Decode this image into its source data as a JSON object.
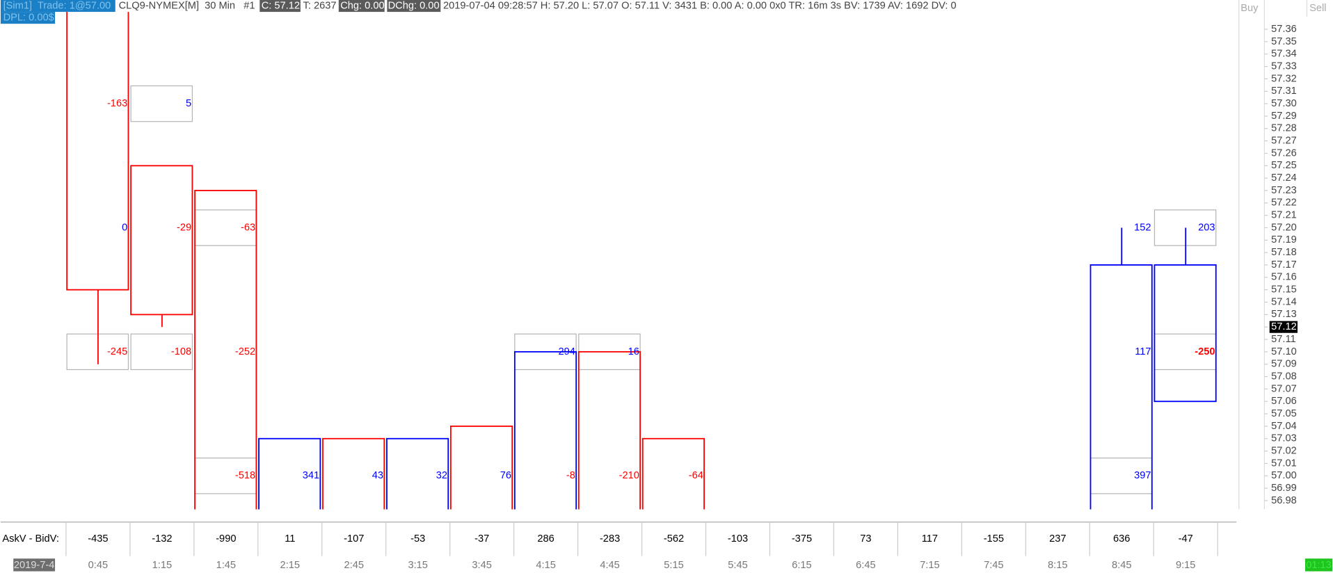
{
  "header": {
    "account": "[Sim1]  Trade: 1@57.00",
    "symbol": "CLQ9-NYMEX[M]  30 Min   #1",
    "close": "C: 57.12",
    "ticks": "T: 2637",
    "chg": "Chg: 0.00",
    "dchg": "DChg: 0.00",
    "info": "2019-07-04 09:28:57 H: 57.20 L: 57.07 O: 57.11 V: 3431 B: 0.00 A: 0.00 0x0 TR: 16m 3s BV: 1739 AV: 1692 DV: 0",
    "dpl": "DPL: 0.00$"
  },
  "buttons": {
    "buy": "Buy",
    "sell": "Sell"
  },
  "price_axis": {
    "ylim": [
      56.973,
      57.374
    ],
    "yticks": [
      56.98,
      56.99,
      {
        "value": 57,
        "label": "57.00"
      },
      57.01,
      57.02,
      57.03,
      57.04,
      57.05,
      57.06,
      57.07,
      57.08,
      57.09,
      {
        "value": 57.1,
        "label": "57.10"
      },
      57.11,
      57.12,
      57.13,
      57.14,
      57.15,
      57.16,
      57.17,
      57.18,
      57.19,
      {
        "value": 57.2,
        "label": "57.20"
      },
      57.21,
      57.22,
      57.23,
      57.24,
      57.25,
      57.26,
      57.27,
      57.28,
      57.29,
      {
        "value": 57.3,
        "label": "57.30"
      },
      57.31,
      57.32,
      57.33,
      57.34,
      57.35,
      57.36
    ],
    "last": {
      "value": 57.12,
      "label": "57.12"
    }
  },
  "colors": {
    "up": "#0000ff",
    "down": "#ff0000",
    "box": "#b4b4b4"
  },
  "row_label": "AskV - BidV:",
  "date": "2019-7-4",
  "timer": "01:13",
  "columns": [
    {
      "time": "0:45",
      "delta": -435,
      "candle": {
        "open": 57.4,
        "high": 57.4,
        "low": 57.09,
        "close": 57.15
      },
      "cells": [
        {
          "price": 57.3,
          "value": -163
        },
        {
          "price": 57.2,
          "value": 0
        },
        {
          "price": 57.1,
          "value": -245,
          "boxed": true
        }
      ]
    },
    {
      "time": "1:15",
      "delta": -132,
      "candle": {
        "open": 57.25,
        "high": 57.25,
        "low": 57.12,
        "close": 57.13
      },
      "cells": [
        {
          "price": 57.3,
          "value": 5,
          "boxed": true
        },
        {
          "price": 57.2,
          "value": -29
        },
        {
          "price": 57.1,
          "value": -108,
          "boxed": true
        }
      ]
    },
    {
      "time": "1:45",
      "delta": -990,
      "candle": {
        "open": 57.23,
        "high": 57.23,
        "low": 56.96,
        "close": 56.96
      },
      "cells": [
        {
          "price": 57.2,
          "value": -63,
          "boxed": true
        },
        {
          "price": 57.1,
          "value": -252
        },
        {
          "price": 57,
          "value": -518,
          "boxed": true
        }
      ]
    },
    {
      "time": "2:15",
      "delta": 11,
      "candle": {
        "open": 56.96,
        "high": 57.03,
        "low": 56.96,
        "close": 57.03
      },
      "cells": [
        {
          "price": 57,
          "value": 341
        }
      ]
    },
    {
      "time": "2:45",
      "delta": -107,
      "candle": {
        "open": 57.03,
        "high": 57.03,
        "low": 56.96,
        "close": 56.96
      },
      "cells": [
        {
          "price": 57,
          "value": 43
        }
      ]
    },
    {
      "time": "3:15",
      "delta": -53,
      "candle": {
        "open": 56.96,
        "high": 57.03,
        "low": 56.96,
        "close": 57.03
      },
      "cells": [
        {
          "price": 57,
          "value": 32
        }
      ]
    },
    {
      "time": "3:45",
      "delta": -37,
      "candle": {
        "open": 57.04,
        "high": 57.04,
        "low": 56.96,
        "close": 56.96
      },
      "cells": [
        {
          "price": 57,
          "value": 76
        }
      ]
    },
    {
      "time": "4:15",
      "delta": 286,
      "candle": {
        "open": 56.96,
        "high": 57.1,
        "low": 56.96,
        "close": 57.1
      },
      "cells": [
        {
          "price": 57.1,
          "value": 294,
          "boxed": true
        },
        {
          "price": 57,
          "value": -8
        }
      ]
    },
    {
      "time": "4:45",
      "delta": -283,
      "candle": {
        "open": 57.1,
        "high": 57.1,
        "low": 56.96,
        "close": 56.96
      },
      "cells": [
        {
          "price": 57.1,
          "value": 16,
          "boxed": true
        },
        {
          "price": 57,
          "value": -210
        }
      ]
    },
    {
      "time": "5:15",
      "delta": -562,
      "candle": {
        "open": 57.03,
        "high": 57.03,
        "low": 56.96,
        "close": 56.96
      },
      "cells": [
        {
          "price": 57,
          "value": -64
        }
      ]
    },
    {
      "time": "5:45",
      "delta": -103,
      "candle": null,
      "cells": []
    },
    {
      "time": "6:15",
      "delta": -375,
      "candle": null,
      "cells": []
    },
    {
      "time": "6:45",
      "delta": 73,
      "candle": null,
      "cells": []
    },
    {
      "time": "7:15",
      "delta": 117,
      "candle": null,
      "cells": []
    },
    {
      "time": "7:45",
      "delta": -155,
      "candle": null,
      "cells": []
    },
    {
      "time": "8:15",
      "delta": 237,
      "candle": null,
      "cells": []
    },
    {
      "time": "8:45",
      "delta": 636,
      "candle": {
        "open": 56.96,
        "high": 57.2,
        "low": 56.96,
        "close": 57.17
      },
      "cells": [
        {
          "price": 57.2,
          "value": 152
        },
        {
          "price": 57.1,
          "value": 117
        },
        {
          "price": 57,
          "value": 397,
          "boxed": true
        }
      ]
    },
    {
      "time": "9:15",
      "delta": -47,
      "candle": {
        "open": 57.06,
        "high": 57.2,
        "low": 57.06,
        "close": 57.17
      },
      "cells": [
        {
          "price": 57.2,
          "value": 203,
          "boxed": true
        },
        {
          "price": 57.1,
          "value": -250,
          "boxed": true,
          "bold": true
        }
      ]
    }
  ]
}
